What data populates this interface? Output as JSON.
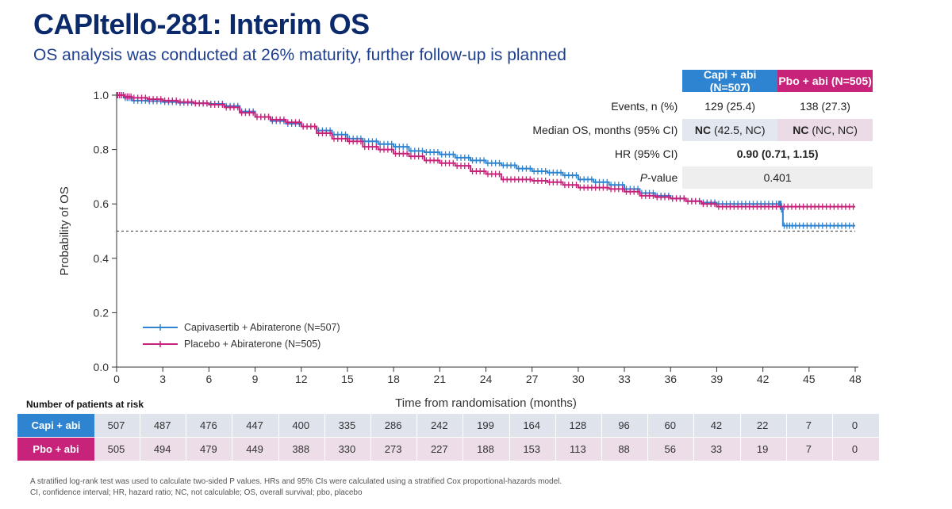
{
  "header": {
    "title": "CAPItello-281: Interim OS",
    "subtitle": "OS analysis was conducted at 26% maturity, further follow-up is planned"
  },
  "stats_table": {
    "col_capi": "Capi + abi (N=507)",
    "col_pbo": "Pbo + abi (N=505)",
    "events_label": "Events, n (%)",
    "events_capi": "129 (25.4)",
    "events_pbo": "138 (27.3)",
    "median_label": "Median OS, months (95% CI)",
    "median_capi_bold": "NC",
    "median_capi_rest": " (42.5, NC)",
    "median_pbo_bold": "NC",
    "median_pbo_rest": " (NC, NC)",
    "hr_label": "HR (95% CI)",
    "hr_value": "0.90 (0.71, 1.15)",
    "p_label_italic": "P",
    "p_label_rest": "-value",
    "p_value": "0.401"
  },
  "chart_data": {
    "type": "line",
    "title": "",
    "xlabel": "Time from randomisation (months)",
    "ylabel": "Probability of OS",
    "xlim": [
      0,
      48
    ],
    "ylim": [
      0,
      1.0
    ],
    "x_ticks": [
      0,
      3,
      6,
      9,
      12,
      15,
      18,
      21,
      24,
      27,
      30,
      33,
      36,
      39,
      42,
      45,
      48
    ],
    "y_ticks": [
      "0.0",
      "0.2",
      "0.4",
      "0.6",
      "0.8",
      "1.0"
    ],
    "reference_line_y": 0.5,
    "legend_position": "bottom-left",
    "series": [
      {
        "name": "Capivasertib + Abiraterone (N=507)",
        "color": "#2e84d0",
        "x": [
          0,
          0.5,
          1,
          2,
          3,
          4,
          5,
          6,
          7,
          8,
          9,
          10,
          11,
          12,
          13,
          14,
          15,
          16,
          17,
          18,
          19,
          20,
          21,
          22,
          23,
          24,
          25,
          26,
          27,
          28,
          29,
          30,
          31,
          32,
          33,
          34,
          35,
          36,
          37,
          38,
          39,
          40,
          41,
          42,
          43,
          43.2,
          43.3,
          44,
          45,
          46,
          47,
          48
        ],
        "y": [
          1.0,
          0.99,
          0.98,
          0.978,
          0.975,
          0.972,
          0.97,
          0.968,
          0.96,
          0.94,
          0.92,
          0.905,
          0.895,
          0.885,
          0.87,
          0.855,
          0.84,
          0.83,
          0.82,
          0.81,
          0.795,
          0.79,
          0.782,
          0.77,
          0.76,
          0.75,
          0.742,
          0.73,
          0.72,
          0.715,
          0.705,
          0.69,
          0.68,
          0.67,
          0.655,
          0.64,
          0.63,
          0.62,
          0.61,
          0.605,
          0.6,
          0.6,
          0.6,
          0.6,
          0.6,
          0.58,
          0.52,
          0.52,
          0.52,
          0.52,
          0.52,
          0.52
        ]
      },
      {
        "name": "Placebo + Abiraterone (N=505)",
        "color": "#c8237a",
        "x": [
          0,
          0.5,
          1,
          2,
          3,
          4,
          5,
          6,
          7,
          8,
          9,
          10,
          11,
          12,
          13,
          14,
          15,
          16,
          17,
          18,
          19,
          20,
          21,
          22,
          23,
          24,
          25,
          26,
          27,
          28,
          29,
          30,
          31,
          32,
          33,
          34,
          35,
          36,
          37,
          38,
          39,
          40,
          41,
          42,
          43,
          44,
          45,
          46,
          47,
          48
        ],
        "y": [
          1.0,
          0.995,
          0.99,
          0.985,
          0.98,
          0.975,
          0.97,
          0.965,
          0.955,
          0.935,
          0.92,
          0.91,
          0.9,
          0.885,
          0.86,
          0.84,
          0.83,
          0.81,
          0.8,
          0.785,
          0.775,
          0.76,
          0.75,
          0.74,
          0.72,
          0.71,
          0.69,
          0.69,
          0.685,
          0.68,
          0.67,
          0.66,
          0.66,
          0.655,
          0.645,
          0.63,
          0.625,
          0.62,
          0.61,
          0.6,
          0.59,
          0.59,
          0.59,
          0.59,
          0.59,
          0.59,
          0.59,
          0.59,
          0.59,
          0.59
        ]
      }
    ]
  },
  "risk_table": {
    "title": "Number of patients at risk",
    "timepoints": [
      0,
      3,
      6,
      9,
      12,
      15,
      18,
      21,
      24,
      27,
      30,
      33,
      36,
      39,
      42,
      45,
      48
    ],
    "rows": [
      {
        "label": "Capi + abi",
        "values": [
          "507",
          "487",
          "476",
          "447",
          "400",
          "335",
          "286",
          "242",
          "199",
          "164",
          "128",
          "96",
          "60",
          "42",
          "22",
          "7",
          "0"
        ]
      },
      {
        "label": "Pbo + abi",
        "values": [
          "505",
          "494",
          "479",
          "449",
          "388",
          "330",
          "273",
          "227",
          "188",
          "153",
          "113",
          "88",
          "56",
          "33",
          "19",
          "7",
          "0"
        ]
      }
    ]
  },
  "footnotes": {
    "line1": "A stratified log-rank test was used to calculate two-sided P values. HRs and 95% CIs were calculated using a stratified Cox proportional-hazards model.",
    "line2": "CI, confidence interval; HR, hazard ratio; NC, not calculable; OS, overall survival; pbo, placebo"
  }
}
